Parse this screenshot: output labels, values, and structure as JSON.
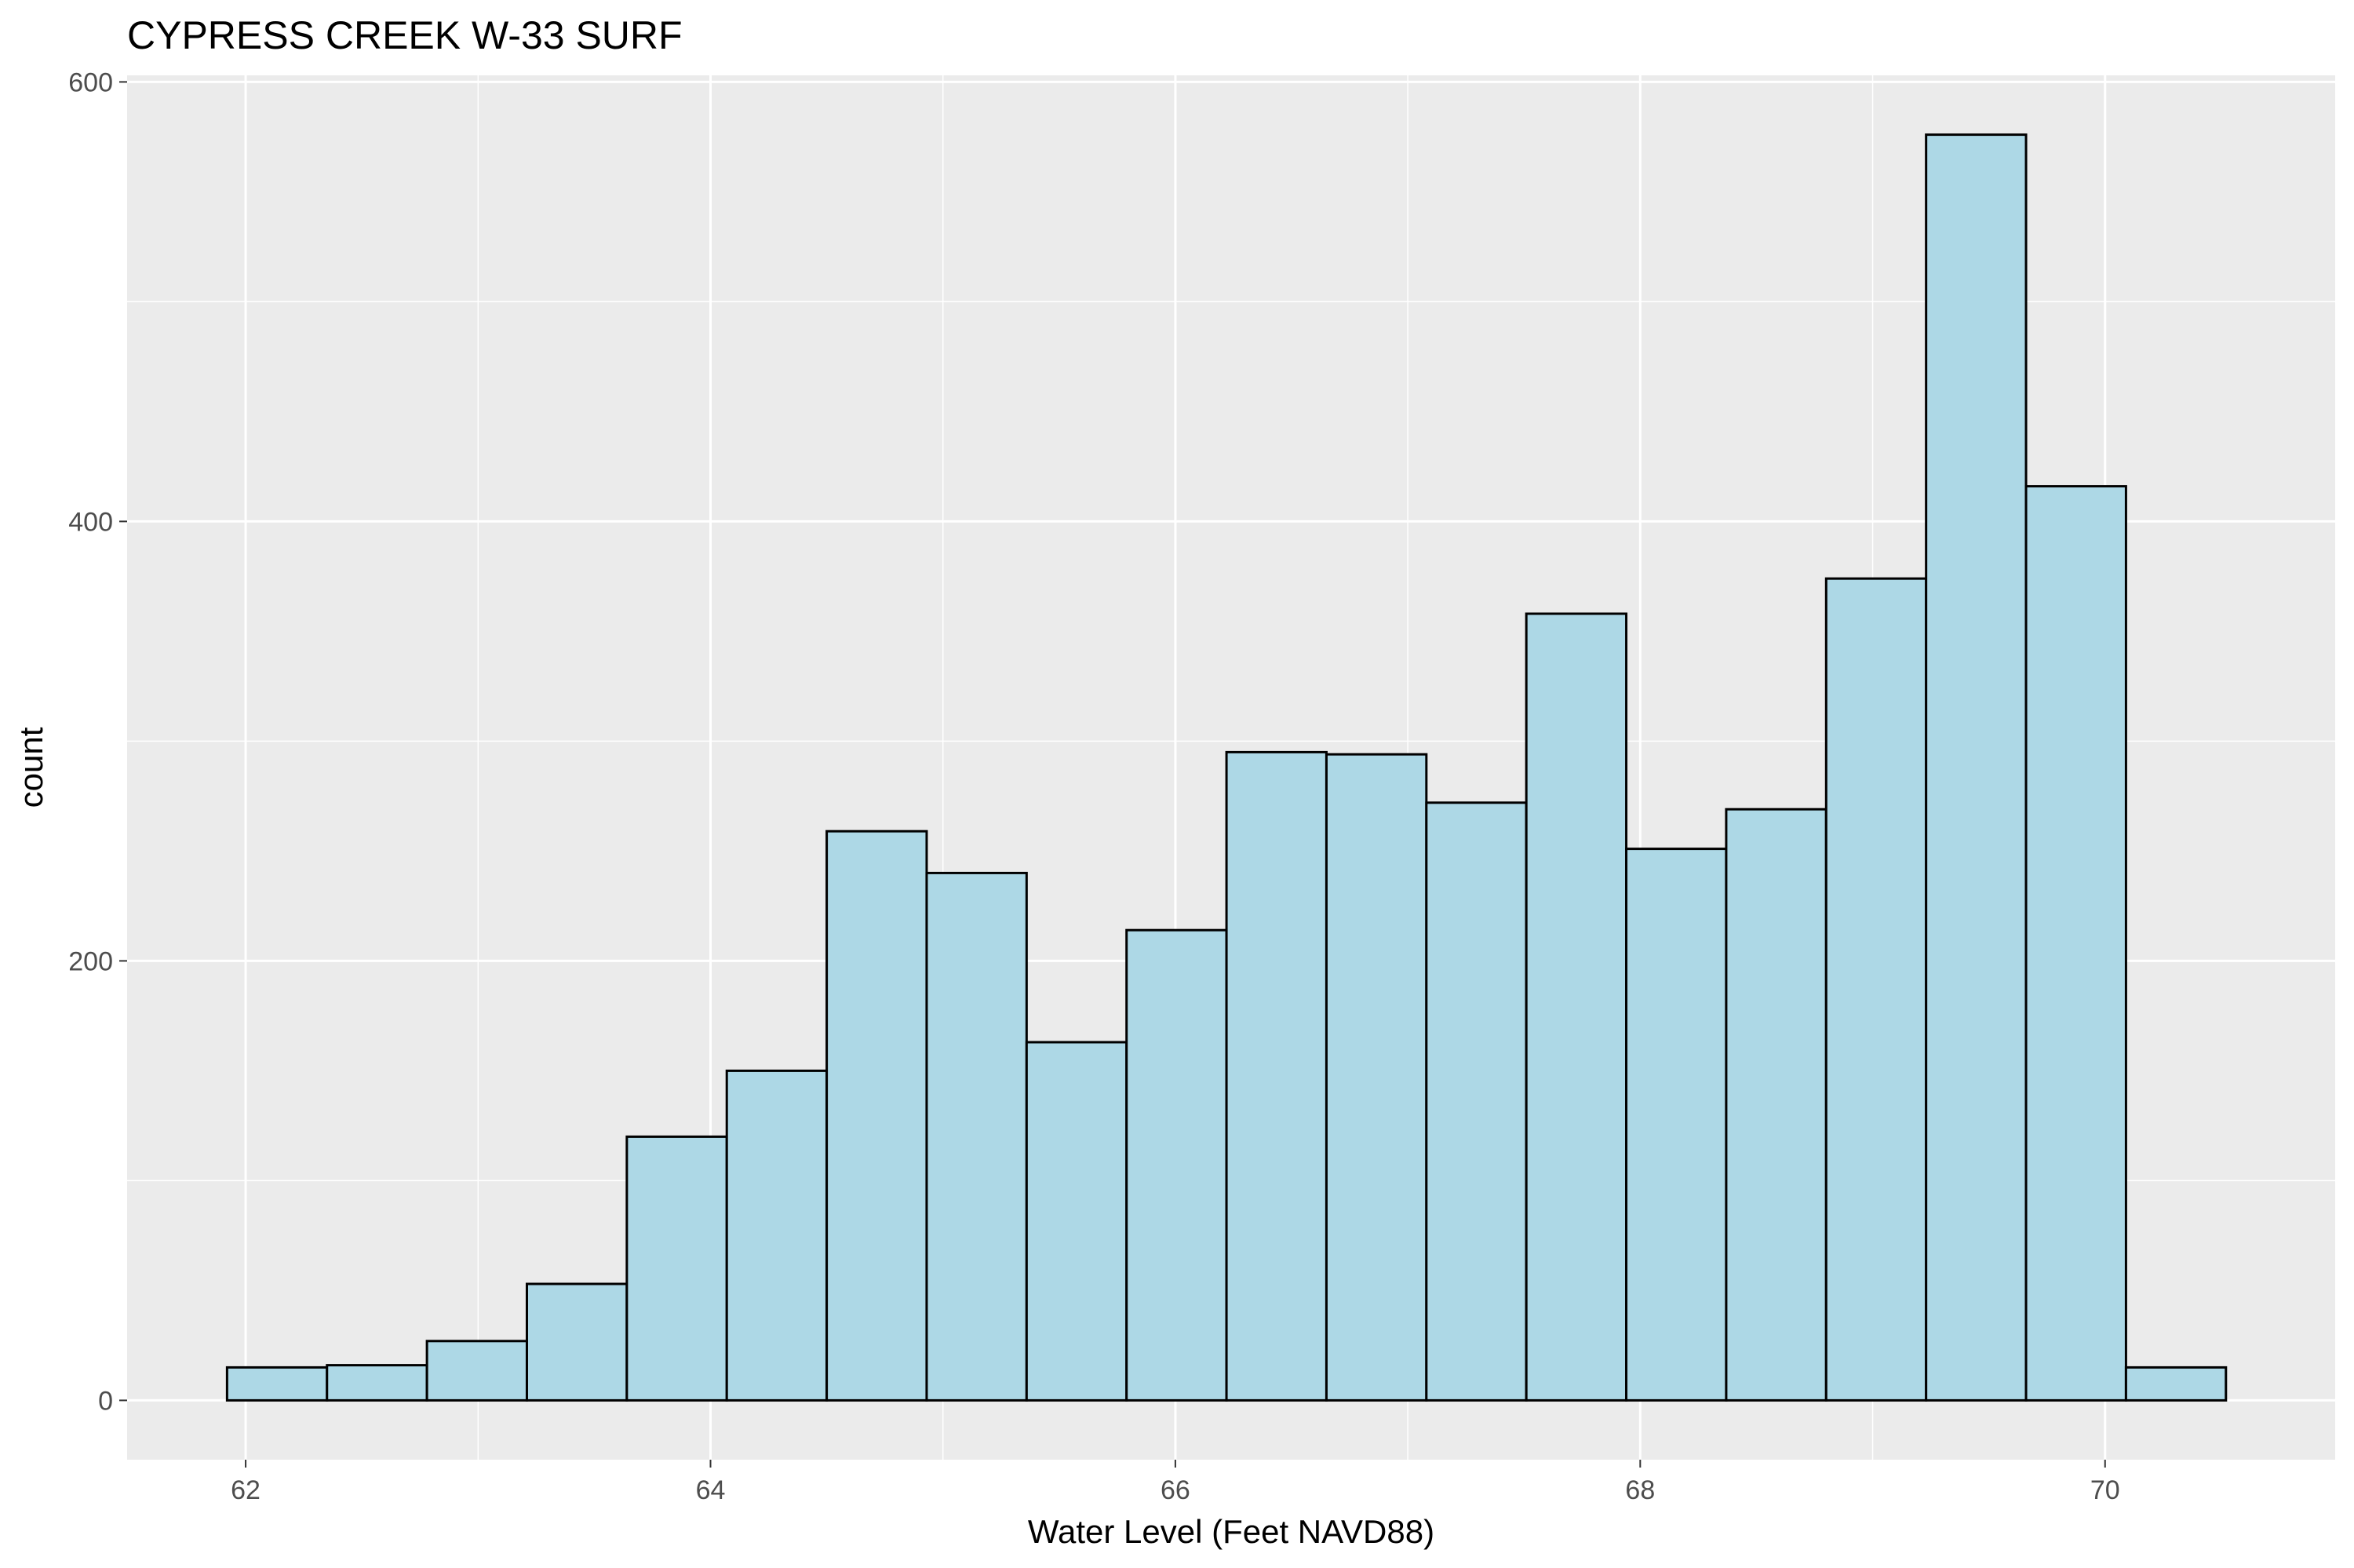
{
  "chart_data": {
    "type": "bar",
    "title": "CYPRESS CREEK W-33 SURF",
    "xlabel": "Water Level (Feet NAVD88)",
    "ylabel": "count",
    "xlim": [
      61.49,
      70.99
    ],
    "ylim": [
      -27,
      603
    ],
    "x_ticks": [
      62,
      64,
      66,
      68,
      70
    ],
    "y_ticks": [
      0,
      200,
      400,
      600
    ],
    "grid": true,
    "bin_width": 0.43,
    "bins": [
      {
        "x0": 61.92,
        "x1": 62.35,
        "count": 15
      },
      {
        "x0": 62.35,
        "x1": 62.78,
        "count": 16
      },
      {
        "x0": 62.78,
        "x1": 63.21,
        "count": 27
      },
      {
        "x0": 63.21,
        "x1": 63.64,
        "count": 53
      },
      {
        "x0": 63.64,
        "x1": 64.07,
        "count": 120
      },
      {
        "x0": 64.07,
        "x1": 64.5,
        "count": 150
      },
      {
        "x0": 64.5,
        "x1": 64.93,
        "count": 259
      },
      {
        "x0": 64.93,
        "x1": 65.36,
        "count": 240
      },
      {
        "x0": 65.36,
        "x1": 65.79,
        "count": 163
      },
      {
        "x0": 65.79,
        "x1": 66.22,
        "count": 214
      },
      {
        "x0": 66.22,
        "x1": 66.65,
        "count": 295
      },
      {
        "x0": 66.65,
        "x1": 67.08,
        "count": 294
      },
      {
        "x0": 67.08,
        "x1": 67.51,
        "count": 272
      },
      {
        "x0": 67.51,
        "x1": 67.94,
        "count": 358
      },
      {
        "x0": 67.94,
        "x1": 68.37,
        "count": 251
      },
      {
        "x0": 68.37,
        "x1": 68.8,
        "count": 269
      },
      {
        "x0": 68.8,
        "x1": 69.23,
        "count": 374
      },
      {
        "x0": 69.23,
        "x1": 69.66,
        "count": 576
      },
      {
        "x0": 69.66,
        "x1": 70.09,
        "count": 416
      },
      {
        "x0": 70.09,
        "x1": 70.52,
        "count": 15
      }
    ],
    "colors": {
      "bar_fill": "#add8e6",
      "bar_outline": "#000000",
      "panel_background": "#ebebeb",
      "grid_line": "#ffffff",
      "tick_text": "#4d4d4d"
    }
  }
}
